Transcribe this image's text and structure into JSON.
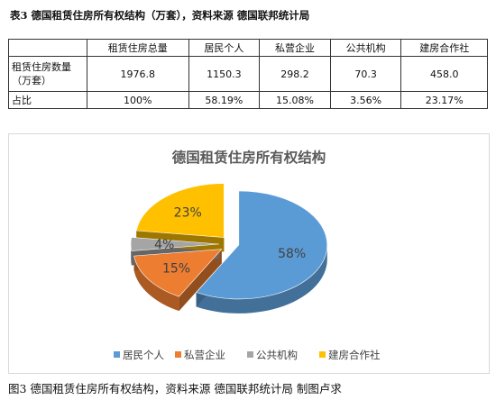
{
  "table_title": "表3 德国租赁住房所有权结构（万套），资料来源 德国联邦统计局",
  "table": {
    "header": [
      "",
      "租赁住房总量",
      "居民个人",
      "私营企业",
      "公共机构",
      "建房合作社"
    ],
    "rows": [
      [
        "租赁住房数量（万套）",
        "1976.8",
        "1150.3",
        "298.2",
        "70.3",
        "458.0"
      ],
      [
        "占比",
        "100%",
        "58.19%",
        "15.08%",
        "3.56%",
        "23.17%"
      ]
    ]
  },
  "chart_data": {
    "type": "pie",
    "title": "德国租赁住房所有权结构",
    "categories": [
      "居民个人",
      "私营企业",
      "公共机构",
      "建房合作社"
    ],
    "values": [
      58,
      15,
      4,
      23
    ],
    "data_labels": [
      "58%",
      "15%",
      "4%",
      "23%"
    ],
    "colors": [
      "#5b9bd5",
      "#ed7d31",
      "#a5a5a5",
      "#ffc000"
    ],
    "legend_position": "bottom",
    "style": "3d-exploded"
  },
  "caption": "图3 德国租赁住房所有权结构，资料来源 德国联邦统计局 制图卢求"
}
